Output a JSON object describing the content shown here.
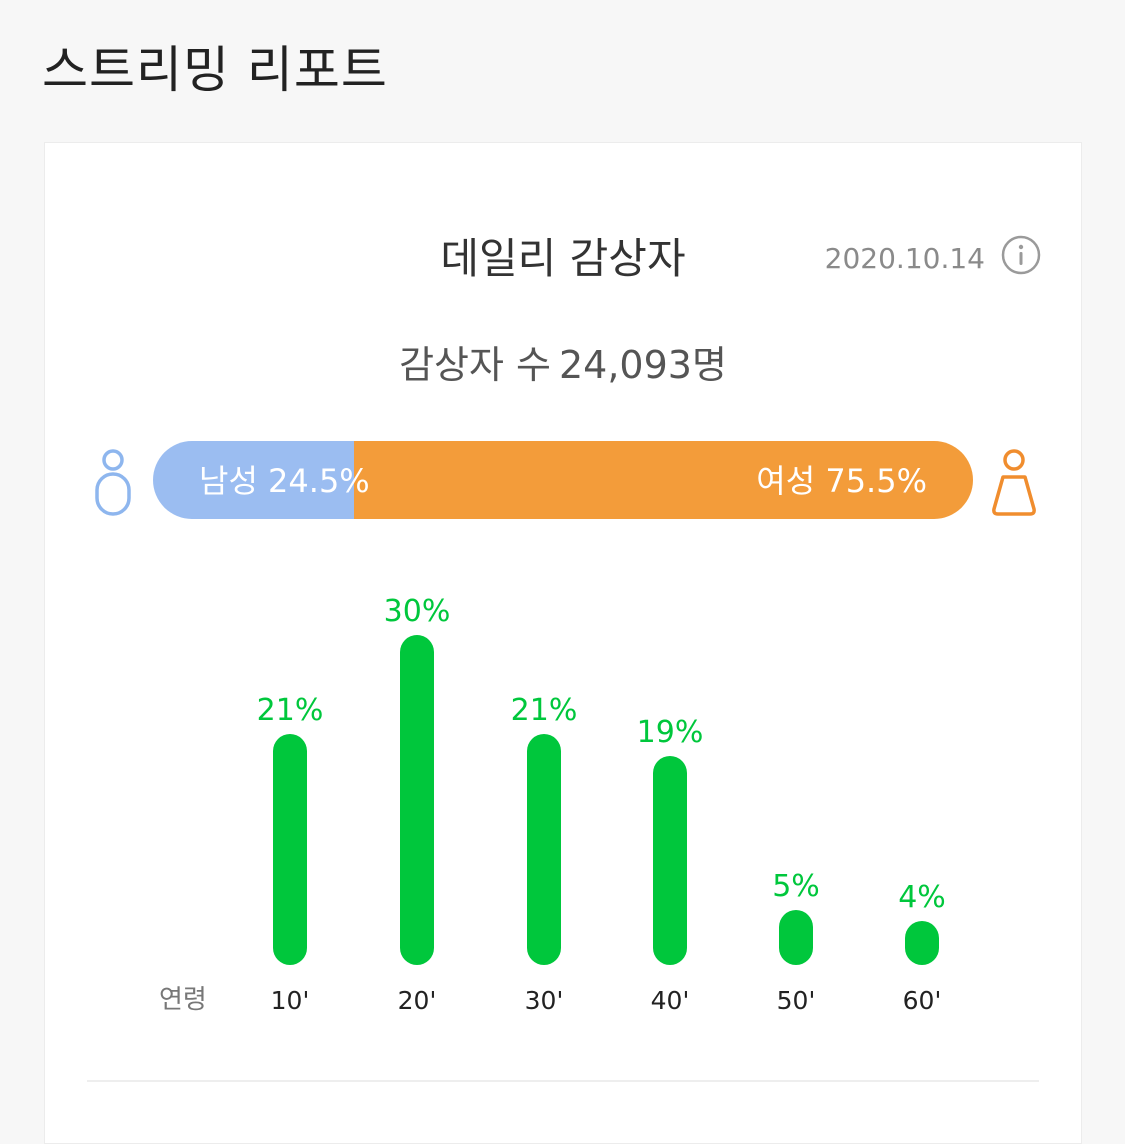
{
  "header": {
    "title": "스트리밍 리포트"
  },
  "card": {
    "title": "데일리 감상자",
    "date": "2020.10.14",
    "listener_label": "감상자 수",
    "listener_count": "24,093명"
  },
  "gender": {
    "male_label": "남성 24.5%",
    "female_label": "여성 75.5%",
    "male_fraction": 0.245,
    "female_fraction": 0.755,
    "male_color": "#9bbdf1",
    "female_color": "#f39c3a"
  },
  "icons": {
    "info": "info-circle-icon",
    "male": "male-person-icon",
    "female": "female-person-icon"
  },
  "chart_data": {
    "type": "bar",
    "xlabel": "연령",
    "categories": [
      "10'",
      "20'",
      "30'",
      "40'",
      "50'",
      "60'"
    ],
    "values": [
      21,
      30,
      21,
      19,
      5,
      4
    ],
    "value_labels": [
      "21%",
      "30%",
      "21%",
      "19%",
      "5%",
      "4%"
    ],
    "ylim": [
      0,
      30
    ],
    "grid": false,
    "bar_color": "#00c73c",
    "label_color": "#00c73c"
  }
}
